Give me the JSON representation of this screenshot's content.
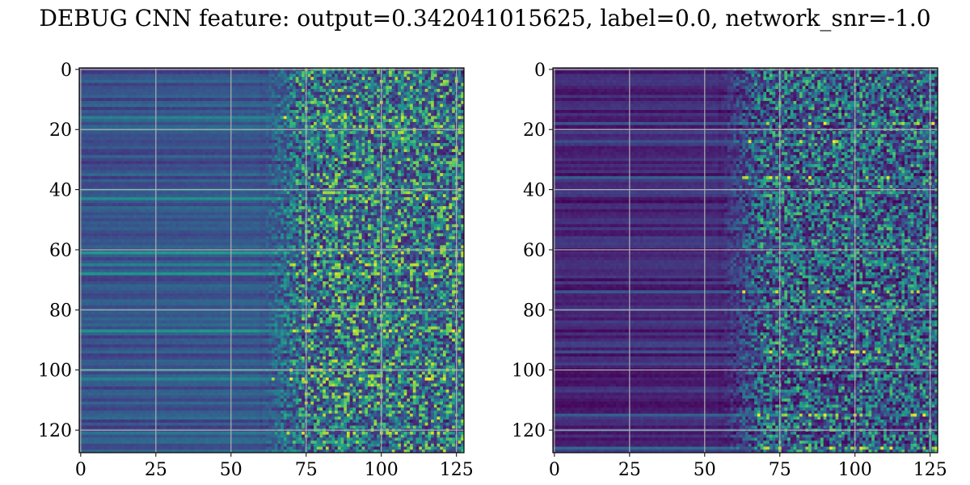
{
  "figure": {
    "title": "DEBUG CNN feature: output=0.342041015625, label=0.0, network_snr=-1.0"
  },
  "chart_data": [
    {
      "type": "heatmap",
      "title": "",
      "xlabel": "",
      "ylabel": "",
      "colormap": "viridis",
      "shape": [
        128,
        128
      ],
      "xlim": [
        -0.5,
        127.5
      ],
      "ylim": [
        127.5,
        -0.5
      ],
      "x_ticks": [
        0,
        25,
        50,
        75,
        100,
        125
      ],
      "y_ticks": [
        0,
        20,
        40,
        60,
        80,
        100,
        120
      ],
      "grid": true,
      "grid_color": "#b0b0b0",
      "structure": {
        "smooth_columns_end": 60,
        "noisy_columns_start": 75,
        "smooth_level": 0.25,
        "noise_level": 0.45,
        "strong_rows": [
          16,
          43,
          61,
          65,
          68,
          87,
          100,
          103,
          121
        ]
      }
    },
    {
      "type": "heatmap",
      "title": "",
      "xlabel": "",
      "ylabel": "",
      "colormap": "viridis",
      "shape": [
        128,
        128
      ],
      "xlim": [
        -0.5,
        127.5
      ],
      "ylim": [
        127.5,
        -0.5
      ],
      "x_ticks": [
        0,
        25,
        50,
        75,
        100,
        125
      ],
      "y_ticks": [
        0,
        20,
        40,
        60,
        80,
        100,
        120
      ],
      "grid": true,
      "grid_color": "#b0b0b0",
      "structure": {
        "smooth_columns_end": 55,
        "noisy_columns_start": 70,
        "smooth_level": 0.1,
        "noise_level": 0.35,
        "strong_rows": [
          18,
          24,
          36,
          74,
          94,
          115,
          126
        ]
      }
    }
  ]
}
